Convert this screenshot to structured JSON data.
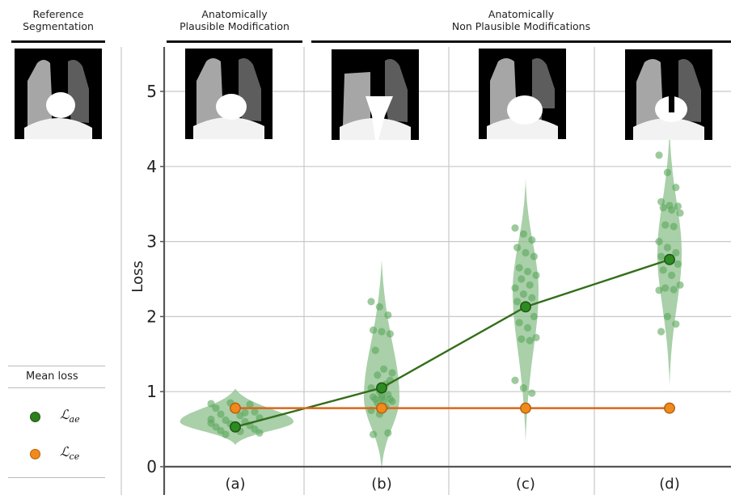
{
  "headers": {
    "reference": "Reference\nSegmentation",
    "plausible": "Anatomically\nPlausible Modification",
    "non_plausible": "Anatomically\nNon Plausible Modifications"
  },
  "legend": {
    "title": "Mean loss",
    "items": [
      {
        "main": "ℒ",
        "sub": "ae",
        "color": "#2e7d1e"
      },
      {
        "main": "ℒ",
        "sub": "ce",
        "color": "#f08a1c"
      }
    ]
  },
  "chart_data": {
    "type": "violin",
    "ylabel": "Loss",
    "ylim": [
      0,
      5.6
    ],
    "yticks": [
      0,
      1,
      2,
      3,
      4,
      5
    ],
    "categories": [
      "(a)",
      "(b)",
      "(c)",
      "(d)"
    ],
    "grid": true,
    "series": [
      {
        "name": "ℒae",
        "color": "#336e1a",
        "values": [
          0.53,
          1.05,
          2.13,
          2.76
        ]
      },
      {
        "name": "ℒce",
        "color": "#d9671a",
        "values": [
          0.78,
          0.78,
          0.78,
          0.78
        ]
      }
    ],
    "samples": [
      [
        0.84,
        0.85,
        0.83,
        0.78,
        0.77,
        0.73,
        0.7,
        0.68,
        0.65,
        0.62,
        0.6,
        0.58,
        0.57,
        0.55,
        0.53,
        0.52,
        0.5,
        0.48,
        0.47,
        0.45,
        0.43,
        0.72,
        0.63
      ],
      [
        2.2,
        2.13,
        2.02,
        1.82,
        1.8,
        1.77,
        1.55,
        1.3,
        1.25,
        1.22,
        1.1,
        1.05,
        1.0,
        0.96,
        0.93,
        0.92,
        0.9,
        0.9,
        0.88,
        0.87,
        0.85,
        0.8,
        0.75,
        0.7,
        0.45,
        0.43,
        0.95,
        1.15
      ],
      [
        3.18,
        3.1,
        3.02,
        2.92,
        2.85,
        2.8,
        2.65,
        2.6,
        2.55,
        2.5,
        2.42,
        2.38,
        2.3,
        2.25,
        2.2,
        2.13,
        2.0,
        1.92,
        1.85,
        1.72,
        1.7,
        1.68,
        1.15,
        1.05,
        0.98
      ],
      [
        4.15,
        3.92,
        3.72,
        3.53,
        3.48,
        3.47,
        3.45,
        3.42,
        3.38,
        3.22,
        3.2,
        3.0,
        2.92,
        2.85,
        2.8,
        2.76,
        2.7,
        2.62,
        2.55,
        2.42,
        2.38,
        2.36,
        2.35,
        2.0,
        1.9,
        1.8
      ]
    ],
    "violin_range": [
      [
        0.29,
        1.04
      ],
      [
        -0.06,
        2.75
      ],
      [
        0.33,
        3.85
      ],
      [
        1.08,
        4.52
      ]
    ]
  }
}
